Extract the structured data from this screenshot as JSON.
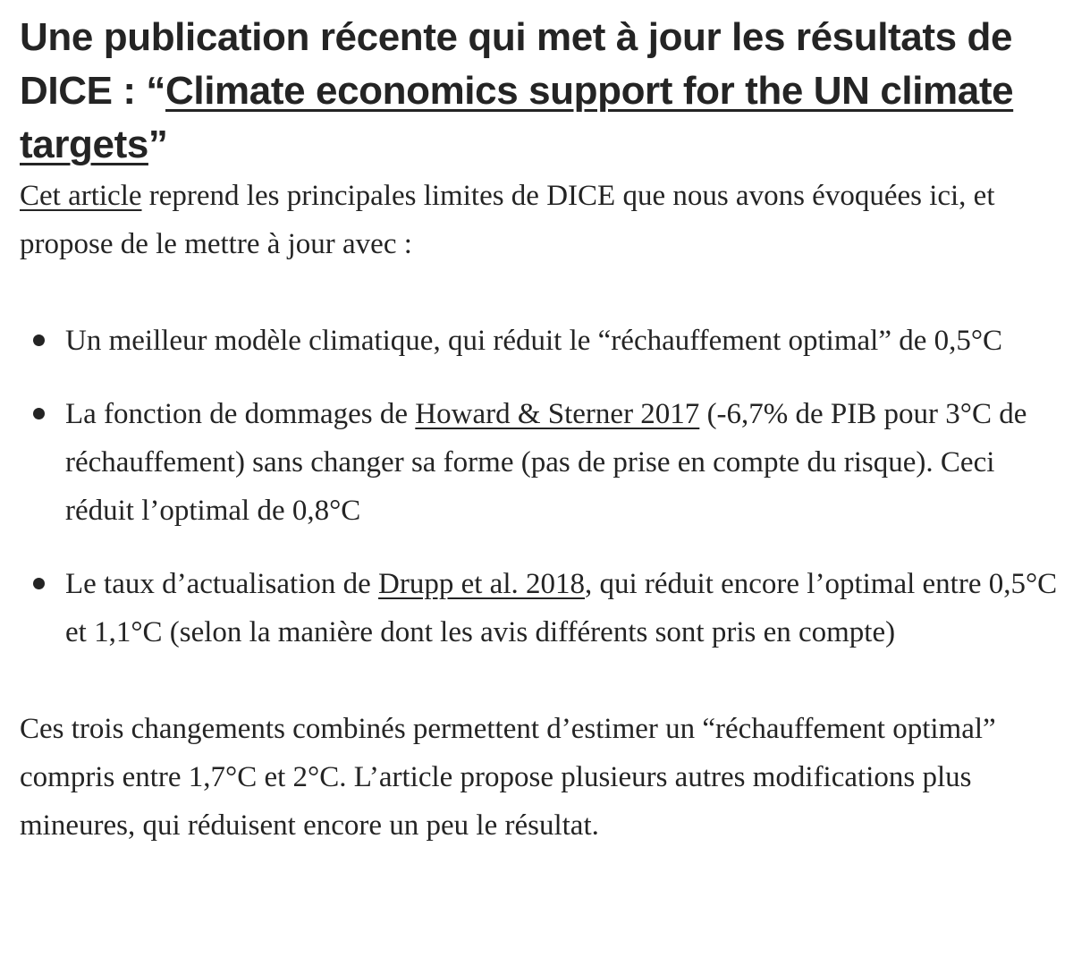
{
  "heading": {
    "before_link": "Une publication récente qui met à jour les résultats de DICE : “",
    "link_text": "Climate economics support for the UN climate targets",
    "after_link": "”"
  },
  "intro": {
    "link_text": "Cet article",
    "text": " reprend les principales limites de DICE que nous avons évoquées ici, et propose de le mettre à jour avec :"
  },
  "bullets": [
    {
      "text": "Un meilleur modèle climatique, qui réduit le “réchauffement optimal” de 0,5°C"
    },
    {
      "before_link": "La fonction de dommages de ",
      "link_text": "Howard & Sterner 2017",
      "after_link": " (-6,7% de PIB pour 3°C de réchauffement) sans changer sa forme (pas de prise en compte du risque). Ceci réduit l’optimal de 0,8°C"
    },
    {
      "before_link": "Le taux d’actualisation de ",
      "link_text": "Drupp et al. 2018",
      "after_link": ", qui réduit encore l’optimal entre 0,5°C et 1,1°C (selon la manière dont les avis différents sont pris en compte)"
    }
  ],
  "conclusion": "Ces trois changements combinés permettent d’estimer un “réchauffement optimal” compris entre 1,7°C et 2°C. L’article propose plusieurs autres modifications plus mineures, qui réduisent encore un peu le résultat."
}
